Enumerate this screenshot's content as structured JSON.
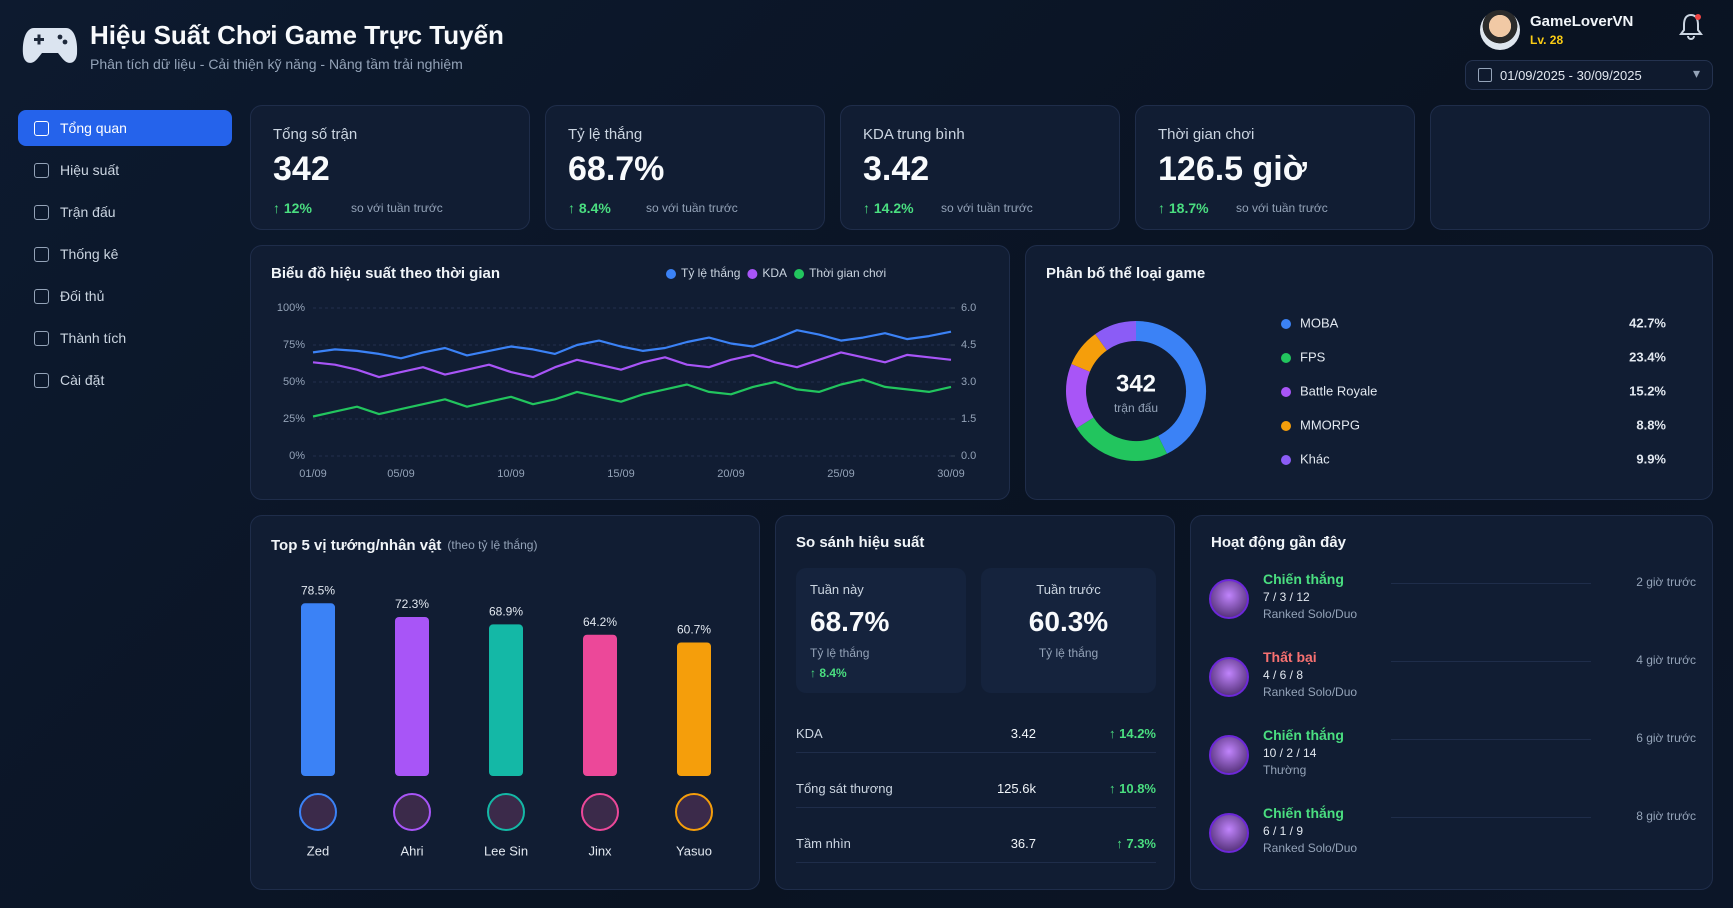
{
  "header": {
    "title": "Hiệu Suất Chơi Game Trực Tuyến",
    "subtitle": "Phân tích dữ liệu - Cải thiện kỹ năng - Nâng tầm trải nghiệm",
    "date_range": "01/09/2025 - 30/09/2025",
    "user": "GameLoverVN",
    "level": "Lv. 28"
  },
  "nav": [
    "Tổng quan",
    "Hiệu suất",
    "Trận đấu",
    "Thống kê",
    "Đối thủ",
    "Thành tích",
    "Cài đặt"
  ],
  "kpis": [
    {
      "label": "Tổng số trận",
      "value": "342",
      "change": "↑ 12%",
      "note": "so với tuần trước"
    },
    {
      "label": "Tỷ lệ thắng",
      "value": "68.7%",
      "change": "↑ 8.4%",
      "note": "so với tuần trước"
    },
    {
      "label": "KDA trung bình",
      "value": "3.42",
      "change": "↑ 14.2%",
      "note": "so với tuần trước"
    },
    {
      "label": "Thời gian chơi",
      "value": "126.5 giờ",
      "change": "↑ 18.7%",
      "note": "so với tuần trước"
    }
  ],
  "chart_data": [
    {
      "type": "line",
      "title": "Biểu đồ hiệu suất theo thời gian",
      "categories": [
        "01/09",
        null,
        null,
        null,
        "05/09",
        null,
        null,
        null,
        null,
        "10/09",
        null,
        null,
        null,
        null,
        "15/09",
        null,
        null,
        null,
        null,
        "20/09",
        null,
        null,
        null,
        null,
        "25/09",
        null,
        null,
        null,
        null,
        "30/09"
      ],
      "ylim": [
        0,
        100
      ],
      "yticks": [
        {
          "value": 0,
          "label": "0%"
        },
        {
          "value": 25,
          "label": "25%"
        },
        {
          "value": 50,
          "label": "50%"
        },
        {
          "value": 75,
          "label": "75%"
        },
        {
          "value": 100,
          "label": "100%"
        }
      ],
      "y2lim": [
        0,
        6
      ],
      "y2ticks": [
        {
          "value": 0,
          "label": "0.0"
        },
        1.5,
        {
          "value": 3,
          "label": "3.0"
        },
        4.5,
        {
          "value": 6,
          "label": "6.0"
        }
      ],
      "grid": true,
      "legend": "top-right",
      "series": [
        {
          "name": "Tỷ lệ thắng",
          "color": "#3b82f6",
          "values": [
            70,
            72,
            71,
            69,
            66,
            70,
            73,
            68,
            71,
            74,
            72,
            69,
            75,
            78,
            74,
            71,
            73,
            77,
            80,
            76,
            74,
            79,
            85,
            82,
            78,
            80,
            83,
            79,
            81,
            84
          ]
        },
        {
          "name": "KDA",
          "color": "#a855f7",
          "axis": "y2",
          "values": [
            3.8,
            3.7,
            3.5,
            3.2,
            3.4,
            3.6,
            3.3,
            3.5,
            3.7,
            3.4,
            3.2,
            3.6,
            3.9,
            3.7,
            3.5,
            3.8,
            4.0,
            3.7,
            3.6,
            3.9,
            4.1,
            3.8,
            3.6,
            3.9,
            4.2,
            4.0,
            3.8,
            4.1,
            4.0,
            3.9
          ]
        },
        {
          "name": "Thời gian chơi",
          "color": "#22c55e",
          "axis": "y2",
          "values": [
            1.6,
            1.8,
            2.0,
            1.7,
            1.9,
            2.1,
            2.3,
            2.0,
            2.2,
            2.4,
            2.1,
            2.3,
            2.6,
            2.4,
            2.2,
            2.5,
            2.7,
            2.9,
            2.6,
            2.5,
            2.8,
            3.0,
            2.7,
            2.6,
            2.9,
            3.1,
            2.8,
            2.7,
            2.6,
            2.8
          ]
        }
      ]
    },
    {
      "type": "pie",
      "title": "Phân bố thể loại game",
      "center_value": "342",
      "center_label": "trận đấu",
      "categories": [
        "MOBA",
        "FPS",
        "Battle Royale",
        "MMORPG",
        "Khác"
      ],
      "values": [
        42.7,
        23.4,
        15.2,
        8.8,
        9.9
      ],
      "value_labels": [
        "42.7%",
        "23.4%",
        "15.2%",
        "8.8%",
        "9.9%"
      ],
      "colors": [
        "#3b82f6",
        "#22c55e",
        "#a855f7",
        "#f59e0b",
        "#8b5cf6"
      ]
    },
    {
      "type": "bar",
      "title": "Top 5 vị tướng/nhân vật",
      "subtitle": "(theo tỷ lệ thắng)",
      "categories": [
        "Zed",
        "Ahri",
        "Lee Sin",
        "Jinx",
        "Yasuo"
      ],
      "values": [
        78.5,
        72.3,
        68.9,
        64.2,
        60.7
      ],
      "value_labels": [
        "78.5%",
        "72.3%",
        "68.9%",
        "64.2%",
        "60.7%"
      ],
      "colors": [
        "#3b82f6",
        "#a855f7",
        "#14b8a6",
        "#ec4899",
        "#f59e0b"
      ]
    }
  ],
  "comparison": {
    "title": "So sánh hiệu suất",
    "this_week": {
      "label": "Tuần này",
      "value": "68.7%",
      "metric": "Tỷ lệ thắng",
      "change": "↑ 8.4%"
    },
    "last_week": {
      "label": "Tuần trước",
      "value": "60.3%",
      "metric": "Tỷ lệ thắng"
    },
    "rows": [
      [
        "KDA",
        "3.42",
        "↑ 14.2%"
      ],
      [
        "Tổng sát thương",
        "125.6k",
        "↑ 10.8%"
      ],
      [
        "Tầm nhìn",
        "36.7",
        "↑ 7.3%"
      ]
    ]
  },
  "activity": {
    "title": "Hoạt động gần đây",
    "items": [
      {
        "result": "Chiến thắng",
        "color": "#4ade80",
        "score": "7 / 3 / 12",
        "mode": "Ranked Solo/Duo",
        "time": "2 giờ trước"
      },
      {
        "result": "Thất bại",
        "color": "#f87171",
        "score": "4 / 6 / 8",
        "mode": "Ranked Solo/Duo",
        "time": "4 giờ trước"
      },
      {
        "result": "Chiến thắng",
        "color": "#4ade80",
        "score": "10 / 2 / 14",
        "mode": "Thường",
        "time": "6 giờ trước"
      },
      {
        "result": "Chiến thắng",
        "color": "#4ade80",
        "score": "6 / 1 / 9",
        "mode": "Ranked Solo/Duo",
        "time": "8 giờ trước"
      }
    ]
  }
}
